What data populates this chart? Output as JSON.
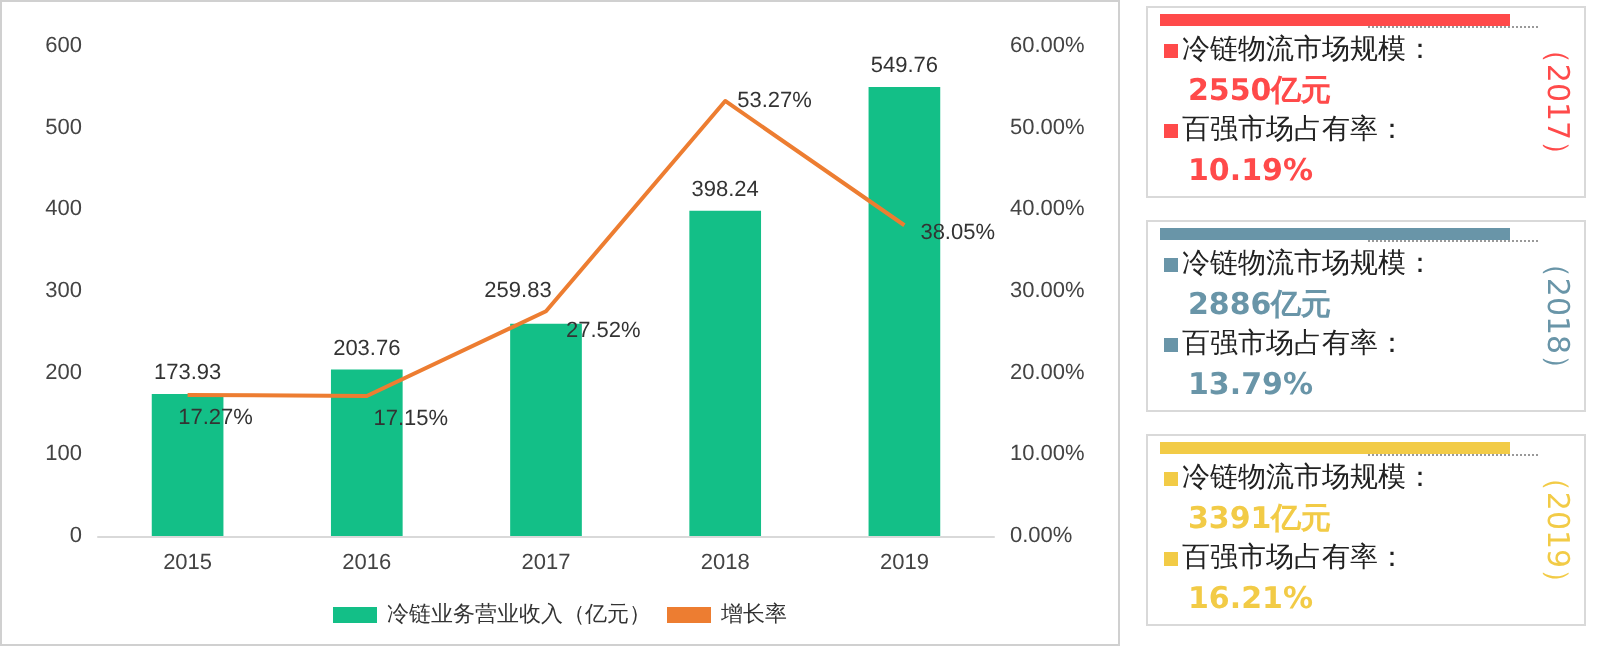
{
  "chart_data": [
    {
      "type": "bar",
      "categories": [
        "2015",
        "2016",
        "2017",
        "2018",
        "2019"
      ],
      "series": [
        {
          "name": "冷链业务营业收入（亿元）",
          "type": "bar",
          "color": "#13bf87",
          "values": [
            173.93,
            203.76,
            259.83,
            398.24,
            549.76
          ],
          "value_labels": [
            "173.93",
            "203.76",
            "259.83",
            "398.24",
            "549.76"
          ]
        },
        {
          "name": "增长率",
          "type": "line",
          "axis": "y2",
          "color": "#ed7d31",
          "values": [
            17.27,
            17.15,
            27.52,
            53.27,
            38.05
          ],
          "value_labels": [
            "17.27%",
            "17.15%",
            "27.52%",
            "53.27%",
            "38.05%"
          ]
        }
      ],
      "ylim": [
        0,
        600
      ],
      "yticks": [
        0,
        100,
        200,
        300,
        400,
        500,
        600
      ],
      "y2lim": [
        0,
        60
      ],
      "y2ticks": [
        {
          "value": 0,
          "label": "0.00%"
        },
        {
          "value": 10,
          "label": "10.00%"
        },
        {
          "value": 20,
          "label": "20.00%"
        },
        {
          "value": 30,
          "label": "30.00%"
        },
        {
          "value": 40,
          "label": "40.00%"
        },
        {
          "value": 50,
          "label": "50.00%"
        },
        {
          "value": 60,
          "label": "60.00%"
        }
      ],
      "grid": false,
      "legend": "bottom",
      "marker": "none",
      "line_style": "solid"
    },
    {
      "type": "other",
      "title": "（2017）",
      "color": "#ff4a4a",
      "annotations": [
        "冷链物流市场规模：",
        "2550亿元",
        "百强市场占有率：",
        "10.19%"
      ]
    },
    {
      "type": "other",
      "title": "（2018）",
      "color": "#6995a8",
      "annotations": [
        "冷链物流市场规模：",
        "2886亿元",
        "百强市场占有率：",
        "13.79%"
      ]
    },
    {
      "type": "other",
      "title": "（2019）",
      "color": "#f2cb46",
      "annotations": [
        "冷链物流市场规模：",
        "3391亿元",
        "百强市场占有率：",
        "16.21%"
      ]
    }
  ]
}
